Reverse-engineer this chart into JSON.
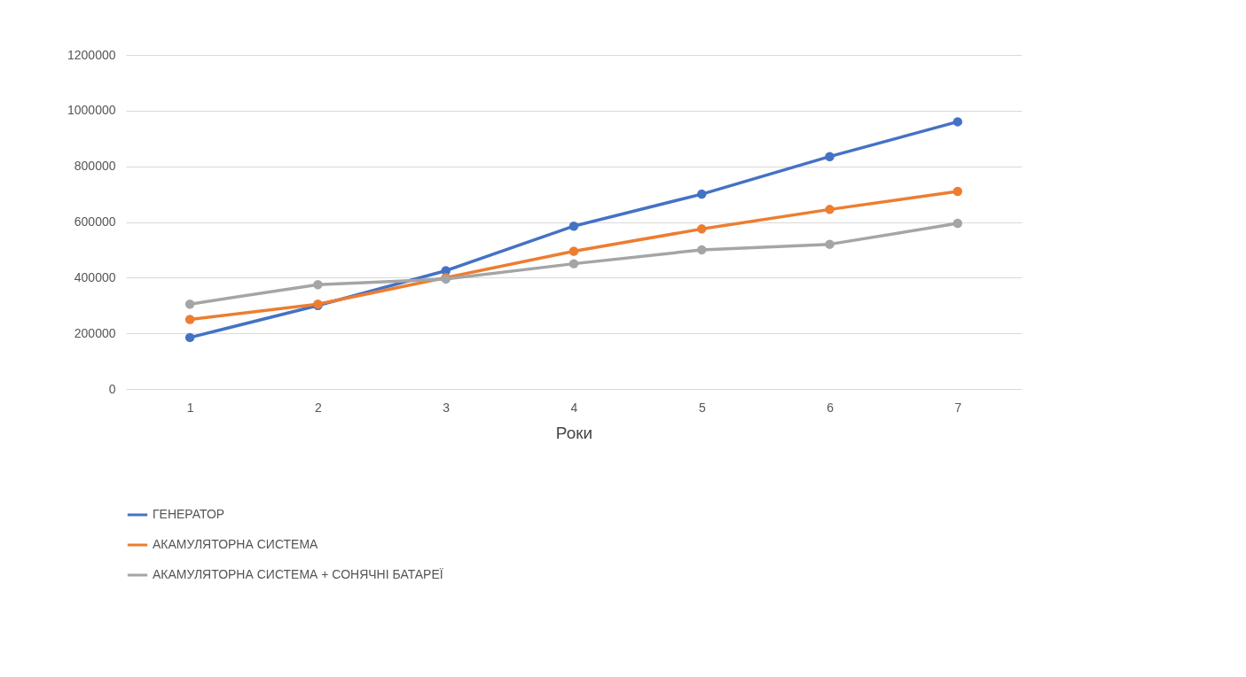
{
  "chart_data": {
    "type": "line",
    "xlabel": "Роки",
    "categories": [
      "1",
      "2",
      "3",
      "4",
      "5",
      "6",
      "7"
    ],
    "series": [
      {
        "name": "ГЕНЕРАТОР",
        "color": "#4472c4",
        "values": [
          185000,
          300000,
          425000,
          585000,
          700000,
          835000,
          960000
        ]
      },
      {
        "name": "АКАМУЛЯТОРНА СИСТЕМА",
        "color": "#ed7d31",
        "values": [
          250000,
          305000,
          400000,
          495000,
          575000,
          645000,
          710000
        ]
      },
      {
        "name": "АКАМУЛЯТОРНА СИСТЕМА + СОНЯЧНІ БАТАРЕЇ",
        "color": "#a5a5a5",
        "values": [
          305000,
          375000,
          395000,
          450000,
          500000,
          520000,
          595000
        ]
      }
    ],
    "ylim": [
      0,
      1200000
    ],
    "yticks": [
      0,
      200000,
      400000,
      600000,
      800000,
      1000000,
      1200000
    ],
    "grid": "y",
    "legend": "bottom",
    "marker": "circle",
    "line_style": "solid"
  }
}
